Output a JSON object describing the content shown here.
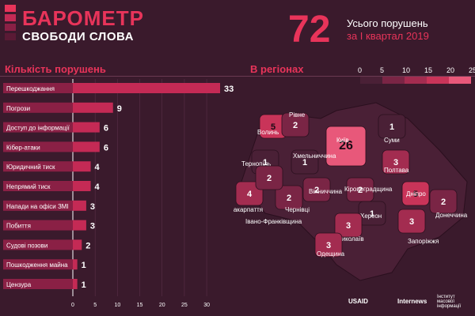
{
  "header": {
    "title_line1": "БАРОМЕТР",
    "title_line2": "СВОБОДИ СЛОВА",
    "total": "72",
    "total_label_line1": "Усього порушень",
    "total_label_line2": "за І квартал 2019"
  },
  "sections": {
    "left_title": "Кількість порушень",
    "right_title": "В регіонах"
  },
  "colors": {
    "background": "#3a1a2c",
    "accent": "#e8345a",
    "bar": "#c42a55",
    "scale": [
      "#4a2036",
      "#7a2545",
      "#a32c50",
      "#c93459",
      "#e8587a"
    ]
  },
  "legend": {
    "ticks": [
      "0",
      "5",
      "10",
      "15",
      "20",
      "25"
    ]
  },
  "chart_data": [
    {
      "type": "bar",
      "orientation": "horizontal",
      "categories": [
        "Перешкоджання",
        "Погрози",
        "Доступ до інформації",
        "Кібер-атаки",
        "Юридичний тиск",
        "Непрямий тиск",
        "Напади на офіси ЗМІ",
        "Побиття",
        "Судові позови",
        "Пошкодження майна",
        "Цензура"
      ],
      "values": [
        33,
        9,
        6,
        6,
        4,
        4,
        3,
        3,
        2,
        1,
        1
      ],
      "xlim": [
        0,
        33
      ],
      "xticks": [
        "0",
        "5",
        "10",
        "15",
        "20",
        "25",
        "30"
      ],
      "grid": true
    },
    {
      "type": "heatmap",
      "regions": [
        {
          "name": "Волинь",
          "value": 5
        },
        {
          "name": "Рівне",
          "value": 2
        },
        {
          "name": "Київ",
          "value": 26
        },
        {
          "name": "Суми",
          "value": 1
        },
        {
          "name": "Тернопіль",
          "value": 1
        },
        {
          "name": "Хмельниччина",
          "value": 1
        },
        {
          "name": "Полтава",
          "value": 3
        },
        {
          "name": "Вінниччина",
          "value": 2
        },
        {
          "name": "Закарпаття",
          "value": 4
        },
        {
          "name": "Чернівці",
          "value": 2
        },
        {
          "name": "Івано-Франківщина",
          "value": 2
        },
        {
          "name": "Кіровоградщина",
          "value": 2
        },
        {
          "name": "Дніпро",
          "value": 5
        },
        {
          "name": "Донеччина",
          "value": 2
        },
        {
          "name": "Херсон",
          "value": 1
        },
        {
          "name": "Миколаїв",
          "value": 3
        },
        {
          "name": "Запоріжжя",
          "value": 3
        },
        {
          "name": "Одещина",
          "value": 3
        }
      ]
    }
  ],
  "footer": {
    "usaid": "USAID",
    "internews": "Internews",
    "imi": "Інститут масової інформації"
  }
}
